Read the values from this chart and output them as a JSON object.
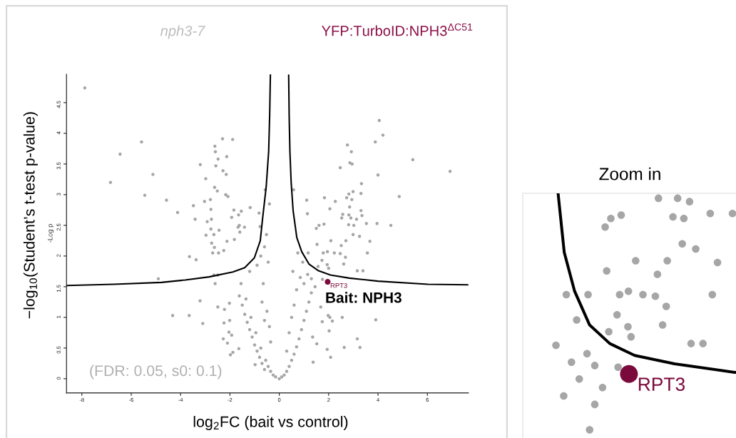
{
  "chart_data": {
    "type": "scatter",
    "xlabel": "log$_{2}$FC (bait vs control)",
    "ylabel": "−log$_{10}$(Student’s t-test p-value)",
    "xlim": [
      -8.62,
      7.66
    ],
    "ylim": [
      -0.23,
      4.96
    ],
    "xticks": [
      -8,
      -6,
      -4,
      -2,
      0,
      2,
      4,
      6
    ],
    "yticks": [
      0,
      0.5,
      1,
      1.5,
      2,
      2.5,
      3,
      3.5,
      4,
      4.5
    ],
    "marker": "circle",
    "annotations": [
      "nph3-7",
      "YFP:TurboID:NPH3$^{ΔC51}$",
      "-Log p",
      "(FDR: 0.05, s0: 0.1)",
      "Bait: NPH3",
      "Zoom in"
    ],
    "series": [
      {
        "color": "#a6a6a6",
        "x": [
          -7.88,
          -5.58,
          -6.45,
          -5.12,
          -6.84,
          -5.45,
          -4.57,
          -3.48,
          -4.12,
          -3.41,
          -3.2,
          -2.98,
          -2.61,
          -2.59,
          -2.3,
          -1.89,
          -2.48,
          -2.13,
          -2.57,
          -2.28,
          -2.15,
          -2.62,
          -2.51,
          -2.17,
          -2.08,
          -3.03,
          -2.79,
          -2.77,
          -1.84,
          -1.54,
          -1.18,
          -0.82,
          -0.57,
          -0.4,
          -1.93,
          -1.65,
          -2.75,
          -2.92,
          -1.67,
          -1.62,
          -1.41,
          -0.78,
          -2.44,
          -2.77,
          -1.6,
          -2.97,
          -2.65,
          -0.52,
          -4.9,
          -3.64,
          -3.37,
          -3.21,
          -4.32,
          -3.65,
          -3.1,
          -2.7,
          -2.46,
          -2.25,
          -2.63,
          -2.74,
          -2.12,
          -1.82,
          -2.49,
          -2.65,
          -2.6,
          -2.49,
          -2.22,
          -2.24,
          -2.27,
          -2.1,
          -2.04,
          -1.98,
          -1.88,
          -1.64,
          -2.01,
          -2.02,
          -1.93,
          -0.98,
          4.05,
          4.2,
          3.89,
          2.76,
          2.92,
          5.41,
          2.86,
          2.95,
          2.47,
          6.92,
          4.0,
          3.33,
          0.58,
          2.99,
          2.82,
          3.31,
          4.86,
          1.83,
          2.73,
          2.94,
          1.11,
          2.27,
          2.85,
          2.05,
          1.14,
          3.31,
          2.57,
          3.35,
          2.82,
          2.53,
          2.9,
          3.13,
          3.53,
          3.96,
          4.52,
          2.81,
          3.02,
          1.81,
          1.61,
          1.5,
          2.99,
          3.25,
          2.09,
          2.7,
          2.51,
          3.67,
          1.53,
          1.95,
          2.23,
          2.47,
          3.57,
          1.78,
          1.17,
          1.73,
          2.68,
          1.94,
          2.61,
          3.16,
          3.39,
          1.57,
          2.0,
          1.3,
          1.75,
          1.98,
          2.05,
          2.15,
          2.55,
          3.91,
          2.02,
          3.16,
          2.63,
          3.27,
          1.94,
          2.08,
          1.37,
          1.52,
          1.35,
          1.74,
          1.68,
          -1.62,
          -1.5,
          -1.4,
          -1.3,
          -1.2,
          -1.1,
          -1.0,
          -0.9,
          -0.8,
          -0.7,
          -0.6,
          -0.45,
          -0.35,
          -0.25,
          -0.15,
          -1.55,
          -1.35,
          -1.15,
          -0.95,
          -0.75,
          -0.55,
          -1.2,
          -0.9,
          -0.65,
          -0.7,
          -0.5,
          -0.6,
          -0.4,
          -0.35,
          -0.75,
          -0.6,
          -0.45,
          1.45,
          1.3,
          1.2,
          1.1,
          1.0,
          0.9,
          0.8,
          0.7,
          0.6,
          0.5,
          0.4,
          0.3,
          0.2,
          0.1,
          0.0,
          1.0,
          0.85,
          0.7,
          0.6,
          0.5,
          0.4,
          0.3,
          0.95,
          0.75,
          1.15,
          0.55
        ],
        "values": [
          4.74,
          3.86,
          3.66,
          3.33,
          3.2,
          2.99,
          2.91,
          2.82,
          2.71,
          2.6,
          3.49,
          3.26,
          3.79,
          3.7,
          3.91,
          3.9,
          3.58,
          3.62,
          3.47,
          3.39,
          3.33,
          3.12,
          3.06,
          3.0,
          2.97,
          2.89,
          2.92,
          2.76,
          2.75,
          2.73,
          2.79,
          2.7,
          3.08,
          2.85,
          2.63,
          2.67,
          2.6,
          2.56,
          2.47,
          2.5,
          2.47,
          2.48,
          2.42,
          2.44,
          2.39,
          2.34,
          2.35,
          2.35,
          1.63,
          1.99,
          1.94,
          1.27,
          1.03,
          1.03,
          0.9,
          2.05,
          2.05,
          2.09,
          2.14,
          2.21,
          2.24,
          2.27,
          1.69,
          1.69,
          1.55,
          1.17,
          1.13,
          0.91,
          0.65,
          0.58,
          0.76,
          0.39,
          0.43,
          0.49,
          0.95,
          1.23,
          0.71,
          0.23,
          4.21,
          3.97,
          3.86,
          3.81,
          3.7,
          3.57,
          3.52,
          3.5,
          3.44,
          3.38,
          3.32,
          3.18,
          3.08,
          3.05,
          3.01,
          3.02,
          2.97,
          2.95,
          2.95,
          2.92,
          2.91,
          2.89,
          2.8,
          2.77,
          2.69,
          2.74,
          2.68,
          2.66,
          2.67,
          2.62,
          2.62,
          2.6,
          2.53,
          2.53,
          2.5,
          2.51,
          2.5,
          2.52,
          2.5,
          2.45,
          2.35,
          2.32,
          2.25,
          2.25,
          2.17,
          2.24,
          2.19,
          2.07,
          2.05,
          2.04,
          2.05,
          2.05,
          2.05,
          1.93,
          1.98,
          1.86,
          1.87,
          1.76,
          1.76,
          1.83,
          1.8,
          1.63,
          1.62,
          1.03,
          1.0,
          0.94,
          1.0,
          0.96,
          0.78,
          0.65,
          0.51,
          0.51,
          0.48,
          0.35,
          0.27,
          0.57,
          0.68,
          0.93,
          1.17,
          1.35,
          1.2,
          1.05,
          0.92,
          0.8,
          0.68,
          0.55,
          0.45,
          0.35,
          0.25,
          0.15,
          0.2,
          0.12,
          0.06,
          0.03,
          1.55,
          1.3,
          1.0,
          0.75,
          0.5,
          0.3,
          1.75,
          1.85,
          1.55,
          1.25,
          1.1,
          0.95,
          0.85,
          0.6,
          2.0,
          2.15,
          1.9,
          1.5,
          1.4,
          1.25,
          1.1,
          0.95,
          0.8,
          0.65,
          0.52,
          0.4,
          0.3,
          0.2,
          0.12,
          0.06,
          0.03,
          0.0,
          1.55,
          1.65,
          1.45,
          1.2,
          1.0,
          0.75,
          0.45,
          1.9,
          2.05,
          1.7,
          1.75
        ]
      },
      {
        "type": "line",
        "marker": "none",
        "color": "#000000",
        "x": [
          -8.62,
          -6.7,
          -4.77,
          -3.81,
          -2.84,
          -1.88,
          -1.4,
          -1.01,
          -0.77,
          -0.68,
          -0.53,
          -0.43,
          -0.39,
          -0.36
        ],
        "values": [
          1.52,
          1.54,
          1.57,
          1.61,
          1.66,
          1.74,
          1.81,
          1.97,
          2.25,
          2.6,
          3.13,
          3.71,
          4.29,
          4.96
        ]
      },
      {
        "type": "line",
        "marker": "none",
        "color": "#000000",
        "x": [
          0.38,
          0.4,
          0.43,
          0.48,
          0.56,
          0.71,
          0.91,
          1.2,
          1.59,
          2.07,
          2.84,
          4.0,
          6.02,
          7.66
        ],
        "values": [
          4.95,
          4.29,
          3.71,
          3.21,
          2.74,
          2.3,
          2.07,
          1.87,
          1.76,
          1.69,
          1.64,
          1.59,
          1.54,
          1.53
        ]
      },
      {
        "name": "RPT3",
        "color": "#7b0a3c",
        "x": [
          1.96
        ],
        "values": [
          1.58
        ]
      }
    ]
  }
}
